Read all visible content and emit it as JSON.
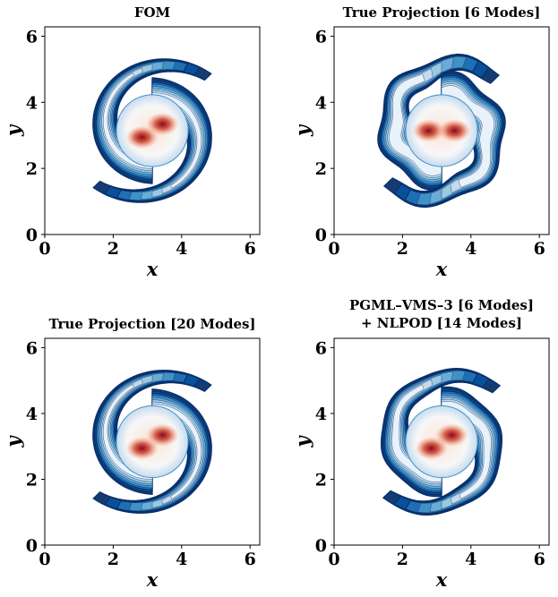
{
  "chart_data": [
    {
      "type": "contour",
      "title": "FOM",
      "xlabel": "x",
      "ylabel": "y",
      "xlim": [
        0,
        6.283
      ],
      "ylim": [
        0,
        6.283
      ],
      "xticks": [
        0,
        2,
        4,
        6
      ],
      "yticks": [
        0,
        2,
        4,
        6
      ]
    },
    {
      "type": "contour",
      "title": "True Projection [6 Modes]",
      "xlabel": "x",
      "ylabel": "y",
      "xlim": [
        0,
        6.283
      ],
      "ylim": [
        0,
        6.283
      ],
      "xticks": [
        0,
        2,
        4,
        6
      ],
      "yticks": [
        0,
        2,
        4,
        6
      ]
    },
    {
      "type": "contour",
      "title": "True Projection [20 Modes]",
      "xlabel": "x",
      "ylabel": "y",
      "xlim": [
        0,
        6.283
      ],
      "ylim": [
        0,
        6.283
      ],
      "xticks": [
        0,
        2,
        4,
        6
      ],
      "yticks": [
        0,
        2,
        4,
        6
      ]
    },
    {
      "type": "contour",
      "title": [
        "PGML–VMS–3 [6 Modes]",
        "+ NLPOD [14 Modes]"
      ],
      "xlabel": "x",
      "ylabel": "y",
      "xlim": [
        0,
        6.283
      ],
      "ylim": [
        0,
        6.283
      ],
      "xticks": [
        0,
        2,
        4,
        6
      ],
      "yticks": [
        0,
        2,
        4,
        6
      ]
    }
  ]
}
